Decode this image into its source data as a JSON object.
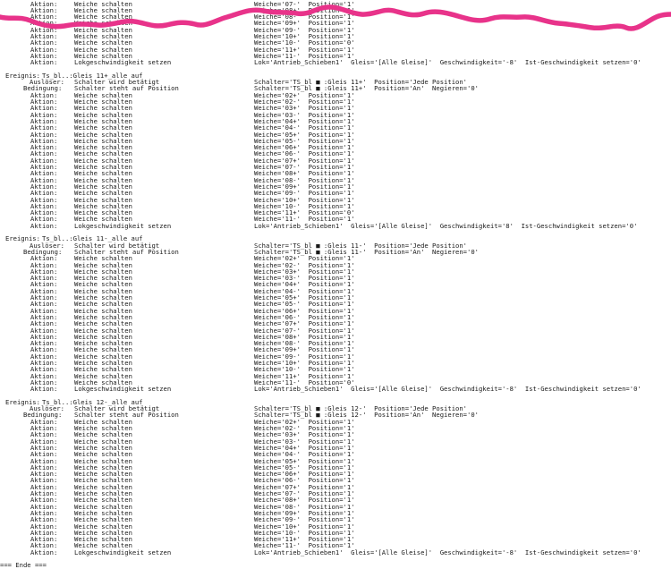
{
  "document": {
    "pre_lines": [
      {
        "kind": "action",
        "label": "Aktion:",
        "type": "Weiche schalten",
        "param": "Weiche='07-'  Position='1'"
      },
      {
        "kind": "action",
        "label": "Aktion:",
        "type": "Weiche schalten",
        "param": "Weiche='08+'  Position='1'"
      },
      {
        "kind": "action",
        "label": "Aktion:",
        "type": "Weiche schalten",
        "param": "Weiche='08-'  Position='1'"
      },
      {
        "kind": "action",
        "label": "Aktion:",
        "type": "Weiche schalten",
        "param": "Weiche='09+'  Position='1'"
      },
      {
        "kind": "action",
        "label": "Aktion:",
        "type": "Weiche schalten",
        "param": "Weiche='09-'  Position='1'"
      },
      {
        "kind": "action",
        "label": "Aktion:",
        "type": "Weiche schalten",
        "param": "Weiche='10+'  Position='1'"
      },
      {
        "kind": "action",
        "label": "Aktion:",
        "type": "Weiche schalten",
        "param": "Weiche='10-'  Position='0'"
      },
      {
        "kind": "action",
        "label": "Aktion:",
        "type": "Weiche schalten",
        "param": "Weiche='11+'  Position='1'"
      },
      {
        "kind": "action",
        "label": "Aktion:",
        "type": "Weiche schalten",
        "param": "Weiche='11-'  Position='1'"
      },
      {
        "kind": "action",
        "label": "Aktion:",
        "type": "Lokgeschwindigkeit setzen",
        "param": "Lok='Antrieb_Schieben1'  Gleis='[Alle Gleise]'  Geschwindigkeit='-8'  Ist-Geschwindigkeit setzen='0'"
      }
    ],
    "events": [
      {
        "label": "Ereignis:",
        "name": "Ts_bl..:Gleis 11+_alle auf",
        "trigger": {
          "label": "Auslöser:",
          "text": "Schalter wird betätigt",
          "param": "Schalter='TS_bl ■ :Gleis 11+'  Position='Jede Position'"
        },
        "condition": {
          "label": "Bedingung:",
          "text": "Schalter steht auf Position",
          "param": "Schalter='TS_bl ■ :Gleis 11+'  Position='An'  Negieren='0'"
        },
        "actions": [
          {
            "type": "Weiche schalten",
            "param": "Weiche='02+'  Position='1'"
          },
          {
            "type": "Weiche schalten",
            "param": "Weiche='02-'  Position='1'"
          },
          {
            "type": "Weiche schalten",
            "param": "Weiche='03+'  Position='1'"
          },
          {
            "type": "Weiche schalten",
            "param": "Weiche='03-'  Position='1'"
          },
          {
            "type": "Weiche schalten",
            "param": "Weiche='04+'  Position='1'"
          },
          {
            "type": "Weiche schalten",
            "param": "Weiche='04-'  Position='1'"
          },
          {
            "type": "Weiche schalten",
            "param": "Weiche='05+'  Position='1'"
          },
          {
            "type": "Weiche schalten",
            "param": "Weiche='05-'  Position='1'"
          },
          {
            "type": "Weiche schalten",
            "param": "Weiche='06+'  Position='1'"
          },
          {
            "type": "Weiche schalten",
            "param": "Weiche='06-'  Position='1'"
          },
          {
            "type": "Weiche schalten",
            "param": "Weiche='07+'  Position='1'"
          },
          {
            "type": "Weiche schalten",
            "param": "Weiche='07-'  Position='1'"
          },
          {
            "type": "Weiche schalten",
            "param": "Weiche='08+'  Position='1'"
          },
          {
            "type": "Weiche schalten",
            "param": "Weiche='08-'  Position='1'"
          },
          {
            "type": "Weiche schalten",
            "param": "Weiche='09+'  Position='1'"
          },
          {
            "type": "Weiche schalten",
            "param": "Weiche='09-'  Position='1'"
          },
          {
            "type": "Weiche schalten",
            "param": "Weiche='10+'  Position='1'"
          },
          {
            "type": "Weiche schalten",
            "param": "Weiche='10-'  Position='1'"
          },
          {
            "type": "Weiche schalten",
            "param": "Weiche='11+'  Position='0'"
          },
          {
            "type": "Weiche schalten",
            "param": "Weiche='11-'  Position='1'"
          },
          {
            "type": "Lokgeschwindigkeit setzen",
            "param": "Lok='Antrieb_Schieben1'  Gleis='[Alle Gleise]'  Geschwindigkeit='8'  Ist-Geschwindigkeit setzen='0'"
          }
        ]
      },
      {
        "label": "Ereignis:",
        "name": "Ts_bl..:Gleis 11-_alle auf",
        "trigger": {
          "label": "Auslöser:",
          "text": "Schalter wird betätigt",
          "param": "Schalter='TS_bl ■ :Gleis 11-'  Position='Jede Position'"
        },
        "condition": {
          "label": "Bedingung:",
          "text": "Schalter steht auf Position",
          "param": "Schalter='TS_bl ■ :Gleis 11-'  Position='An'  Negieren='0'"
        },
        "actions": [
          {
            "type": "Weiche schalten",
            "param": "Weiche='02+'  Position='1'"
          },
          {
            "type": "Weiche schalten",
            "param": "Weiche='02-'  Position='1'"
          },
          {
            "type": "Weiche schalten",
            "param": "Weiche='03+'  Position='1'"
          },
          {
            "type": "Weiche schalten",
            "param": "Weiche='03-'  Position='1'"
          },
          {
            "type": "Weiche schalten",
            "param": "Weiche='04+'  Position='1'"
          },
          {
            "type": "Weiche schalten",
            "param": "Weiche='04-'  Position='1'"
          },
          {
            "type": "Weiche schalten",
            "param": "Weiche='05+'  Position='1'"
          },
          {
            "type": "Weiche schalten",
            "param": "Weiche='05-'  Position='1'"
          },
          {
            "type": "Weiche schalten",
            "param": "Weiche='06+'  Position='1'"
          },
          {
            "type": "Weiche schalten",
            "param": "Weiche='06-'  Position='1'"
          },
          {
            "type": "Weiche schalten",
            "param": "Weiche='07+'  Position='1'"
          },
          {
            "type": "Weiche schalten",
            "param": "Weiche='07-'  Position='1'"
          },
          {
            "type": "Weiche schalten",
            "param": "Weiche='08+'  Position='1'"
          },
          {
            "type": "Weiche schalten",
            "param": "Weiche='08-'  Position='1'"
          },
          {
            "type": "Weiche schalten",
            "param": "Weiche='09+'  Position='1'"
          },
          {
            "type": "Weiche schalten",
            "param": "Weiche='09-'  Position='1'"
          },
          {
            "type": "Weiche schalten",
            "param": "Weiche='10+'  Position='1'"
          },
          {
            "type": "Weiche schalten",
            "param": "Weiche='10-'  Position='1'"
          },
          {
            "type": "Weiche schalten",
            "param": "Weiche='11+'  Position='1'"
          },
          {
            "type": "Weiche schalten",
            "param": "Weiche='11-'  Position='0'"
          },
          {
            "type": "Lokgeschwindigkeit setzen",
            "param": "Lok='Antrieb_Schieben1'  Gleis='[Alle Gleise]'  Geschwindigkeit='-8'  Ist-Geschwindigkeit setzen='0'"
          }
        ]
      },
      {
        "label": "Ereignis:",
        "name": "Ts_bl..:Gleis 12-_alle auf",
        "trigger": {
          "label": "Auslöser:",
          "text": "Schalter wird betätigt",
          "param": "Schalter='TS_bl ■ :Gleis 12-'  Position='Jede Position'"
        },
        "condition": {
          "label": "Bedingung:",
          "text": "Schalter steht auf Position",
          "param": "Schalter='TS_bl ■ :Gleis 12-'  Position='An'  Negieren='0'"
        },
        "actions": [
          {
            "type": "Weiche schalten",
            "param": "Weiche='02+'  Position='1'"
          },
          {
            "type": "Weiche schalten",
            "param": "Weiche='02-'  Position='1'"
          },
          {
            "type": "Weiche schalten",
            "param": "Weiche='03+'  Position='1'"
          },
          {
            "type": "Weiche schalten",
            "param": "Weiche='03-'  Position='1'"
          },
          {
            "type": "Weiche schalten",
            "param": "Weiche='04+'  Position='1'"
          },
          {
            "type": "Weiche schalten",
            "param": "Weiche='04-'  Position='1'"
          },
          {
            "type": "Weiche schalten",
            "param": "Weiche='05+'  Position='1'"
          },
          {
            "type": "Weiche schalten",
            "param": "Weiche='05-'  Position='1'"
          },
          {
            "type": "Weiche schalten",
            "param": "Weiche='06+'  Position='1'"
          },
          {
            "type": "Weiche schalten",
            "param": "Weiche='06-'  Position='1'"
          },
          {
            "type": "Weiche schalten",
            "param": "Weiche='07+'  Position='1'"
          },
          {
            "type": "Weiche schalten",
            "param": "Weiche='07-'  Position='1'"
          },
          {
            "type": "Weiche schalten",
            "param": "Weiche='08+'  Position='1'"
          },
          {
            "type": "Weiche schalten",
            "param": "Weiche='08-'  Position='1'"
          },
          {
            "type": "Weiche schalten",
            "param": "Weiche='09+'  Position='1'"
          },
          {
            "type": "Weiche schalten",
            "param": "Weiche='09-'  Position='1'"
          },
          {
            "type": "Weiche schalten",
            "param": "Weiche='10+'  Position='1'"
          },
          {
            "type": "Weiche schalten",
            "param": "Weiche='10-'  Position='1'"
          },
          {
            "type": "Weiche schalten",
            "param": "Weiche='11+'  Position='1'"
          },
          {
            "type": "Weiche schalten",
            "param": "Weiche='11-'  Position='1'"
          },
          {
            "type": "Lokgeschwindigkeit setzen",
            "param": "Lok='Antrieb_Schieben1'  Gleis='[Alle Gleise]'  Geschwindigkeit='-8'  Ist-Geschwindigkeit setzen='0'"
          }
        ]
      }
    ],
    "action_label": "Aktion:",
    "end_marker": "=== Ende ==="
  },
  "colors": {
    "scribble": "#e8338a",
    "text": "#1a1a1a"
  }
}
